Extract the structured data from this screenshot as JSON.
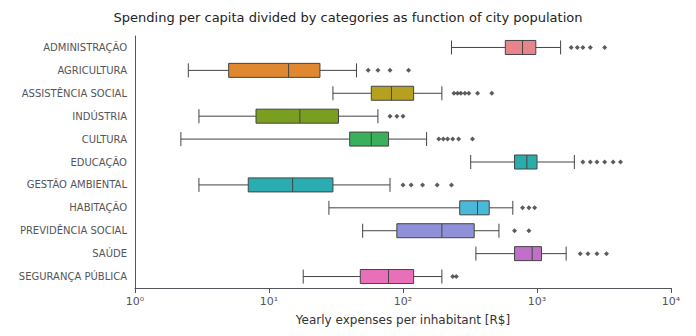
{
  "chart_data": {
    "type": "box",
    "title": "Spending per capita divided by categories as function of city population",
    "xlabel": "Yearly expenses per inhabitant [R$]",
    "orientation": "horizontal",
    "log": "x",
    "grid": false,
    "categories": [
      "ADMINISTRAÇÃO",
      "AGRICULTURA",
      "ASSISTÊNCIA SOCIAL",
      "INDÚSTRIA",
      "CULTURA",
      "EDUCAÇÃO",
      "GESTÃO AMBIENTAL",
      "HABITAÇÃO",
      "PREVIDÊNCIA SOCIAL",
      "SAÚDE",
      "SEGURANÇA PÚBLICA"
    ],
    "colors": [
      "#e8848c",
      "#e08830",
      "#b5a020",
      "#7a9e20",
      "#3aaf5c",
      "#2aacaa",
      "#2aacb0",
      "#4ab8d8",
      "#9090d8",
      "#c070c8",
      "#e870b8"
    ],
    "values": [
      {
        "whislo": 230,
        "q1": 580,
        "med": 780,
        "q3": 980,
        "whishi": 1500,
        "fliers": [
          1800,
          2000,
          2200,
          2500,
          3200
        ]
      },
      {
        "whislo": 2.5,
        "q1": 5,
        "med": 14,
        "q3": 24,
        "whishi": 45,
        "fliers": [
          55,
          65,
          80,
          110
        ]
      },
      {
        "whislo": 30,
        "q1": 58,
        "med": 82,
        "q3": 120,
        "whishi": 195,
        "fliers": [
          240,
          255,
          270,
          290,
          310,
          360,
          460
        ]
      },
      {
        "whislo": 3,
        "q1": 8,
        "med": 17,
        "q3": 33,
        "whishi": 65,
        "fliers": [
          80,
          90,
          100
        ]
      },
      {
        "whislo": 2.2,
        "q1": 40,
        "med": 58,
        "q3": 78,
        "whishi": 150,
        "fliers": [
          185,
          200,
          215,
          235,
          260,
          330
        ]
      },
      {
        "whislo": 320,
        "q1": 680,
        "med": 840,
        "q3": 1000,
        "whishi": 1900,
        "fliers": [
          2200,
          2500,
          2800,
          3200,
          3700,
          4200
        ]
      },
      {
        "whislo": 3,
        "q1": 7,
        "med": 15,
        "q3": 30,
        "whishi": 80,
        "fliers": [
          100,
          115,
          140,
          180,
          230
        ]
      },
      {
        "whislo": 28,
        "q1": 265,
        "med": 360,
        "q3": 440,
        "whishi": 660,
        "fliers": [
          780,
          870,
          960
        ]
      },
      {
        "whislo": 50,
        "q1": 90,
        "med": 195,
        "q3": 340,
        "whishi": 520,
        "fliers": [
          680,
          870
        ]
      },
      {
        "whislo": 350,
        "q1": 680,
        "med": 920,
        "q3": 1080,
        "whishi": 1650,
        "fliers": [
          2100,
          2400,
          2800,
          3300
        ]
      },
      {
        "whislo": 18,
        "q1": 48,
        "med": 78,
        "q3": 120,
        "whishi": 195,
        "fliers": [
          235,
          250
        ]
      }
    ],
    "xlim": [
      1,
      10000
    ],
    "xticks": [
      {
        "value": 1,
        "label": "10⁰"
      },
      {
        "value": 10,
        "label": "10¹"
      },
      {
        "value": 100,
        "label": "10²"
      },
      {
        "value": 1000,
        "label": "10³"
      },
      {
        "value": 10000,
        "label": "10⁴"
      }
    ]
  }
}
